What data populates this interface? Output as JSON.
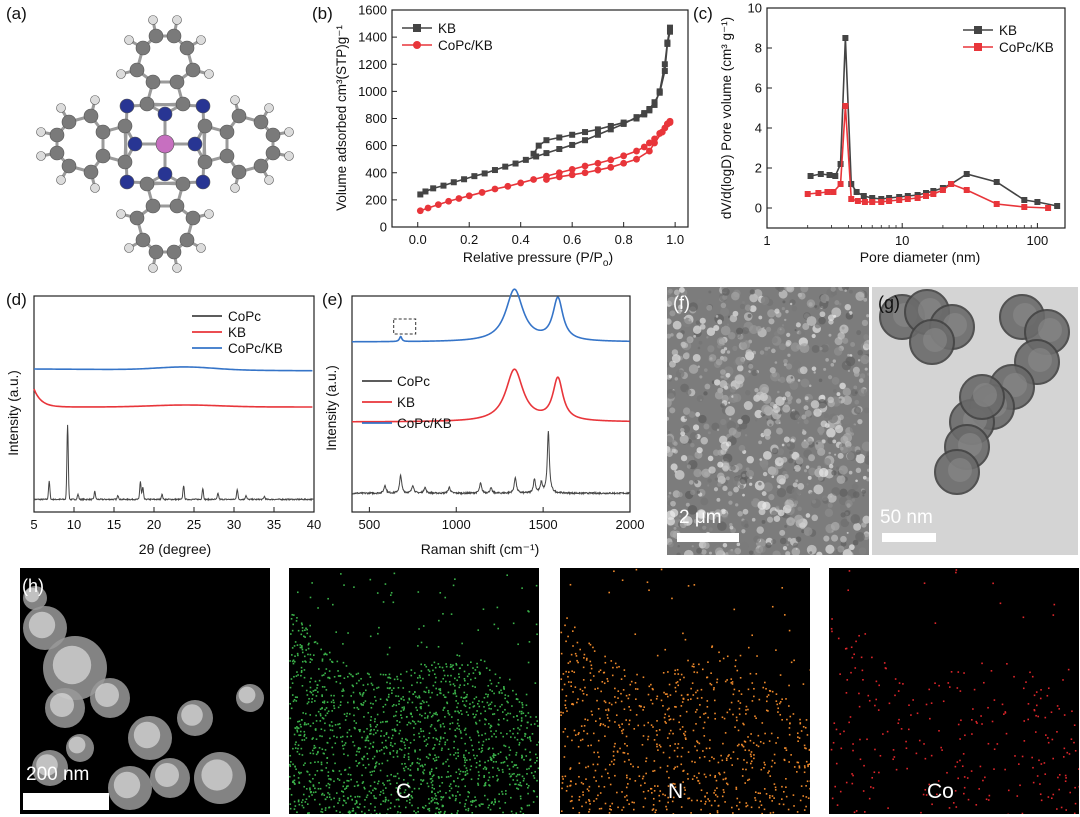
{
  "panels": {
    "a": "(a)",
    "b": "(b)",
    "c": "(c)",
    "d": "(d)",
    "e": "(e)",
    "f": "(f)",
    "g": "(g)",
    "h": "(h)"
  },
  "colors": {
    "kb": "#444444",
    "copc_kb_b": "#e8353a",
    "copc": "#444444",
    "kb_line": "#e8353a",
    "copc_kb_line": "#3574c8",
    "carbon": "#7a7a7a",
    "nitrogen": "#283593",
    "cobalt": "#c76fc0",
    "hydrogen": "#dcdcdc"
  },
  "chart_data": [
    {
      "id": "b",
      "type": "line",
      "xlabel": "Relative pressure (P/P",
      "xlabel_sub": "o",
      "xlabel_end": ")",
      "ylabel": "Volume adsorbed cm³(STP)g⁻¹",
      "xlim": [
        -0.1,
        1.05
      ],
      "ylim": [
        0,
        1600
      ],
      "xticks": [
        0.0,
        0.2,
        0.4,
        0.6,
        0.8,
        1.0
      ],
      "xtick_labels": [
        "0.0",
        "0.2",
        "0.4",
        "0.6",
        "0.8",
        "1.0"
      ],
      "yticks": [
        0,
        200,
        400,
        600,
        800,
        1000,
        1200,
        1400,
        1600
      ],
      "ytick_labels": [
        "0",
        "200",
        "400",
        "600",
        "800",
        "1000",
        "1200",
        "1400",
        "1600"
      ],
      "legend": "top-left",
      "series": [
        {
          "name": "KB",
          "marker": "square",
          "x": [
            0.01,
            0.03,
            0.06,
            0.1,
            0.14,
            0.18,
            0.22,
            0.26,
            0.3,
            0.34,
            0.38,
            0.42,
            0.46,
            0.5,
            0.55,
            0.6,
            0.65,
            0.7,
            0.75,
            0.8,
            0.85,
            0.88,
            0.9,
            0.92,
            0.94,
            0.96,
            0.97,
            0.98,
            0.98,
            0.97,
            0.96,
            0.94,
            0.92,
            0.9,
            0.88,
            0.85,
            0.8,
            0.75,
            0.7,
            0.65,
            0.6,
            0.55,
            0.5,
            0.47,
            0.45
          ],
          "y": [
            240,
            262,
            285,
            305,
            330,
            352,
            375,
            395,
            420,
            445,
            468,
            495,
            520,
            545,
            575,
            605,
            640,
            680,
            720,
            760,
            810,
            840,
            870,
            920,
            990,
            1150,
            1350,
            1440,
            1470,
            1360,
            1200,
            1000,
            900,
            860,
            830,
            800,
            770,
            745,
            720,
            700,
            680,
            660,
            640,
            600,
            540
          ]
        },
        {
          "name": "CoPc/KB",
          "marker": "circle",
          "x": [
            0.01,
            0.04,
            0.08,
            0.12,
            0.16,
            0.2,
            0.25,
            0.3,
            0.35,
            0.4,
            0.45,
            0.5,
            0.55,
            0.6,
            0.65,
            0.7,
            0.75,
            0.8,
            0.85,
            0.88,
            0.9,
            0.92,
            0.94,
            0.96,
            0.97,
            0.98,
            0.98,
            0.97,
            0.95,
            0.92,
            0.9,
            0.85,
            0.8,
            0.75,
            0.7,
            0.65,
            0.6,
            0.55,
            0.5
          ],
          "y": [
            120,
            140,
            165,
            190,
            210,
            230,
            255,
            280,
            300,
            325,
            350,
            375,
            400,
            425,
            450,
            470,
            495,
            525,
            560,
            590,
            620,
            650,
            690,
            730,
            760,
            770,
            780,
            760,
            700,
            620,
            560,
            500,
            470,
            440,
            420,
            400,
            385,
            370,
            350
          ]
        }
      ]
    },
    {
      "id": "c",
      "type": "line",
      "xscale": "log",
      "xlabel": "Pore diameter (nm)",
      "ylabel": "dV/d(logD) Pore volume (cm³ g⁻¹)",
      "xlim": [
        1,
        160
      ],
      "ylim": [
        -1,
        10
      ],
      "xticks": [
        1,
        10,
        100
      ],
      "xtick_labels": [
        "1",
        "10",
        "100"
      ],
      "yticks": [
        0,
        2,
        4,
        6,
        8,
        10
      ],
      "ytick_labels": [
        "0",
        "2",
        "4",
        "6",
        "8",
        "10"
      ],
      "legend": "top-right",
      "series": [
        {
          "name": "KB",
          "marker": "square",
          "x": [
            2.1,
            2.5,
            2.9,
            3.2,
            3.5,
            3.8,
            4.2,
            4.6,
            5.2,
            6,
            7,
            8,
            9.5,
            11,
            13,
            15,
            17,
            20,
            23,
            30,
            50,
            80,
            100,
            140
          ],
          "y": [
            1.6,
            1.7,
            1.65,
            1.6,
            2.2,
            8.5,
            1.2,
            0.8,
            0.6,
            0.5,
            0.45,
            0.5,
            0.55,
            0.6,
            0.65,
            0.75,
            0.85,
            1,
            1.2,
            1.7,
            1.3,
            0.4,
            0.3,
            0.1
          ]
        },
        {
          "name": "CoPc/KB",
          "marker": "square",
          "x": [
            2.0,
            2.4,
            2.8,
            3.1,
            3.5,
            3.8,
            4.2,
            4.7,
            5.3,
            6,
            7,
            8,
            9.5,
            11,
            13,
            15,
            17,
            20,
            23,
            30,
            50,
            80,
            120
          ],
          "y": [
            0.7,
            0.75,
            0.8,
            0.8,
            1.2,
            5.1,
            0.45,
            0.35,
            0.3,
            0.3,
            0.3,
            0.35,
            0.4,
            0.45,
            0.5,
            0.6,
            0.7,
            0.9,
            1.2,
            0.9,
            0.2,
            0.05,
            0.0
          ]
        }
      ]
    },
    {
      "id": "d",
      "type": "line",
      "xlabel": "2θ (degree)",
      "ylabel": "Intensity (a.u.)",
      "xlim": [
        5,
        40
      ],
      "xticks": [
        5,
        10,
        15,
        20,
        25,
        30,
        35,
        40
      ],
      "xtick_labels": [
        "5",
        "10",
        "15",
        "20",
        "25",
        "30",
        "35",
        "40"
      ],
      "legend": "top-right",
      "series": [
        {
          "name": "CoPc"
        },
        {
          "name": "KB"
        },
        {
          "name": "CoPc/KB"
        }
      ]
    },
    {
      "id": "e",
      "type": "line",
      "xlabel": "Raman shift (cm⁻¹)",
      "ylabel": "Intensity (a.u.)",
      "xlim": [
        400,
        2000
      ],
      "xticks": [
        500,
        1000,
        1500,
        2000
      ],
      "xtick_labels": [
        "500",
        "1000",
        "1500",
        "2000"
      ],
      "legend": "center-left",
      "series": [
        {
          "name": "CoPc"
        },
        {
          "name": "KB"
        },
        {
          "name": "CoPc/KB"
        }
      ]
    }
  ],
  "micrographs": {
    "f": {
      "scale": "2 μm"
    },
    "g": {
      "scale": "50 nm"
    },
    "h": {
      "scale": "200 nm"
    },
    "maps": [
      {
        "element": "C",
        "dot_color": "#3bb34a"
      },
      {
        "element": "N",
        "dot_color": "#f08a2b"
      },
      {
        "element": "Co",
        "dot_color": "#e0262b"
      }
    ]
  }
}
